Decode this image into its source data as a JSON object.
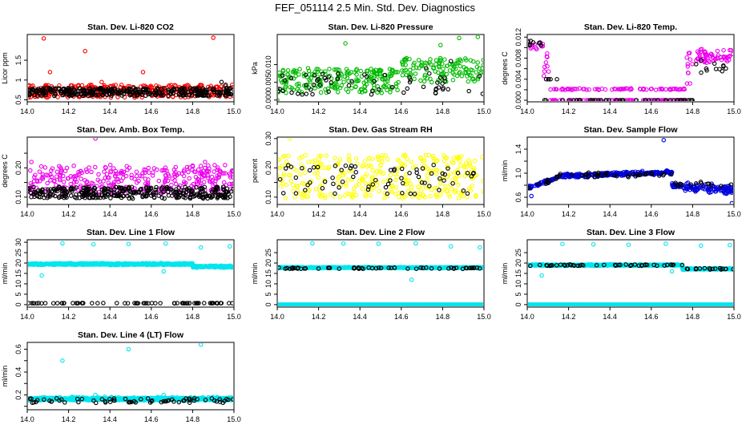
{
  "figure_title": "FEF_051114  2.5 Min. Std. Dev. Diagnostics",
  "chart_data": [
    {
      "type": "scatter",
      "title": "Stan. Dev. Li-820 CO2",
      "xlabel": "",
      "ylabel": "Licor ppm",
      "xlim": [
        14.0,
        15.0
      ],
      "ylim": [
        0.45,
        2.15
      ],
      "xticks": [
        14.0,
        14.2,
        14.4,
        14.6,
        14.8,
        15.0
      ],
      "yticks": [
        0.5,
        1.0,
        1.5
      ],
      "series": [
        {
          "name": "primary",
          "color": "#ff0000",
          "baseline": 0.72,
          "spread": 0.16,
          "seed": 11,
          "points": [
            [
              14.08,
              2.05
            ],
            [
              14.28,
              1.73
            ],
            [
              14.9,
              2.07
            ],
            [
              14.56,
              1.2
            ],
            [
              14.11,
              1.2
            ],
            [
              14.36,
              0.95
            ]
          ]
        },
        {
          "name": "secondary",
          "color": "#000000",
          "baseline": 0.7,
          "spread": 0.1,
          "seed": 12,
          "points": [
            [
              14.94,
              0.95
            ],
            [
              14.96,
              0.88
            ]
          ]
        }
      ]
    },
    {
      "type": "scatter",
      "title": "Stan. Dev. Li-820 Pressure",
      "xlabel": "",
      "ylabel": "kPa",
      "xlim": [
        14.0,
        15.0
      ],
      "ylim": [
        -0.0005,
        0.0185
      ],
      "xticks": [
        14.0,
        14.2,
        14.4,
        14.6,
        14.8,
        15.0
      ],
      "yticks": [
        0.0,
        0.005,
        0.01
      ],
      "yticklabels": [
        "0.000",
        "0.005",
        "0.010"
      ],
      "series": [
        {
          "name": "primary",
          "color": "#00bb00",
          "baseline": 0.0055,
          "spread": 0.0035,
          "seed": 21,
          "trend": [
            14.6,
            0.003
          ],
          "points": [
            [
              14.33,
              0.016
            ],
            [
              14.88,
              0.0175
            ],
            [
              14.97,
              0.0178
            ],
            [
              14.79,
              0.0155
            ],
            [
              14.0,
              0.0
            ]
          ]
        },
        {
          "name": "secondary",
          "color": "#000000",
          "baseline": 0.0045,
          "spread": 0.003,
          "seed": 22,
          "count": 60,
          "points": [
            [
              14.84,
              0.011
            ],
            [
              14.72,
              0.009
            ]
          ]
        }
      ]
    },
    {
      "type": "scatter",
      "title": "Stan. Dev. Li-820 Temp.",
      "xlabel": "",
      "ylabel": "degrees C",
      "xlim": [
        14.0,
        15.0
      ],
      "ylim": [
        -0.0003,
        0.0125
      ],
      "xticks": [
        14.0,
        14.2,
        14.4,
        14.6,
        14.8,
        15.0
      ],
      "yticks": [
        0.0,
        0.002,
        0.004,
        0.006,
        0.008,
        0.01,
        0.012
      ],
      "yticklabels": [
        "0.000",
        "",
        "0.004",
        "",
        "0.008",
        "",
        "0.012"
      ],
      "series": [
        {
          "name": "primary",
          "color": "#ee00ee",
          "mode": "temp",
          "seed": 31,
          "points": []
        },
        {
          "name": "secondary",
          "color": "#000000",
          "mode": "temp-black",
          "seed": 32,
          "points": []
        }
      ]
    },
    {
      "type": "scatter",
      "title": "Stan. Dev. Amb. Box Temp.",
      "xlabel": "",
      "ylabel": "degrees C",
      "xlim": [
        14.0,
        15.0
      ],
      "ylim": [
        0.075,
        0.305
      ],
      "xticks": [
        14.0,
        14.2,
        14.4,
        14.6,
        14.8,
        15.0
      ],
      "yticks": [
        0.1,
        0.15,
        0.2,
        0.25
      ],
      "yticklabels": [
        "0.10",
        "",
        "0.20",
        ""
      ],
      "series": [
        {
          "name": "primary",
          "color": "#ee00ee",
          "baseline": 0.16,
          "spread": 0.05,
          "seed": 41,
          "points": [
            [
              14.33,
              0.3
            ],
            [
              14.02,
              0.22
            ],
            [
              14.86,
              0.22
            ]
          ]
        },
        {
          "name": "secondary",
          "color": "#000000",
          "baseline": 0.115,
          "spread": 0.02,
          "seed": 42,
          "points": []
        }
      ]
    },
    {
      "type": "scatter",
      "title": "Stan. Dev. Gas Stream RH",
      "xlabel": "",
      "ylabel": "percent",
      "xlim": [
        14.0,
        15.0
      ],
      "ylim": [
        0.075,
        0.305
      ],
      "xticks": [
        14.0,
        14.2,
        14.4,
        14.6,
        14.8,
        15.0
      ],
      "yticks": [
        0.1,
        0.15,
        0.2,
        0.25,
        0.3
      ],
      "yticklabels": [
        "0.10",
        "",
        "0.20",
        "",
        "0.30"
      ],
      "series": [
        {
          "name": "primary",
          "color": "#ffff00",
          "baseline": 0.17,
          "spread": 0.075,
          "seed": 51,
          "points": [
            [
              14.06,
              0.3
            ]
          ]
        },
        {
          "name": "secondary",
          "color": "#000000",
          "baseline": 0.16,
          "spread": 0.05,
          "seed": 52,
          "count": 70,
          "points": []
        }
      ]
    },
    {
      "type": "scatter",
      "title": "Stan. Dev. Sample Flow",
      "xlabel": "",
      "ylabel": "ml/min",
      "xlim": [
        14.0,
        15.0
      ],
      "ylim": [
        0.48,
        1.6
      ],
      "xticks": [
        14.0,
        14.2,
        14.4,
        14.6,
        14.8,
        15.0
      ],
      "yticks": [
        0.6,
        0.8,
        1.0,
        1.2,
        1.4
      ],
      "yticklabels": [
        "0.6",
        "",
        "1.0",
        "",
        "1.4"
      ],
      "series": [
        {
          "name": "primary",
          "color": "#0000dd",
          "mode": "sampleflow",
          "seed": 61,
          "points": [
            [
              14.66,
              1.55
            ],
            [
              14.99,
              0.5
            ],
            [
              14.02,
              0.62
            ]
          ]
        },
        {
          "name": "secondary",
          "color": "#000000",
          "mode": "sampleflow-black",
          "seed": 62,
          "points": []
        }
      ]
    },
    {
      "type": "scatter",
      "title": "Stan. Dev. Line 1 Flow",
      "xlabel": "",
      "ylabel": "ml/min",
      "xlim": [
        14.0,
        15.0
      ],
      "ylim": [
        -1.2,
        31.2
      ],
      "xticks": [
        14.0,
        14.2,
        14.4,
        14.6,
        14.8,
        15.0
      ],
      "yticks": [
        0,
        5,
        10,
        15,
        20,
        25,
        30
      ],
      "series": [
        {
          "name": "primary",
          "color": "#00e5ee",
          "baseline": 19.5,
          "spread": 0.6,
          "seed": 71,
          "dense": true,
          "dip": [
            14.8,
            1.2
          ],
          "points": [
            [
              14.17,
              29.5
            ],
            [
              14.32,
              29.0
            ],
            [
              14.49,
              29.2
            ],
            [
              14.67,
              29.4
            ],
            [
              14.84,
              27.5
            ],
            [
              14.98,
              28.0
            ],
            [
              14.07,
              14.0
            ],
            [
              14.66,
              16.0
            ]
          ]
        },
        {
          "name": "secondary",
          "color": "#000000",
          "line": 0.7,
          "seed": 72,
          "count": 70,
          "points": []
        }
      ]
    },
    {
      "type": "scatter",
      "title": "Stan. Dev. Line 2 Flow",
      "xlabel": "",
      "ylabel": "ml/min",
      "xlim": [
        14.0,
        15.0
      ],
      "ylim": [
        -1.2,
        31.2
      ],
      "xticks": [
        14.0,
        14.2,
        14.4,
        14.6,
        14.8,
        15.0
      ],
      "yticks": [
        0,
        5,
        10,
        15,
        20,
        25
      ],
      "series": [
        {
          "name": "primary",
          "color": "#00e5ee",
          "baseline": 17.8,
          "spread": 0.4,
          "seed": 81,
          "dense": true,
          "zeroline": true,
          "points": [
            [
              14.17,
              29.5
            ],
            [
              14.32,
              29.4
            ],
            [
              14.49,
              29.3
            ],
            [
              14.67,
              29.5
            ],
            [
              14.84,
              28.0
            ],
            [
              14.98,
              27.5
            ],
            [
              14.65,
              12.0
            ]
          ]
        },
        {
          "name": "secondary",
          "color": "#000000",
          "baseline": 17.5,
          "spread": 0.3,
          "seed": 82,
          "count": 60,
          "points": []
        }
      ]
    },
    {
      "type": "scatter",
      "title": "Stan. Dev. Line 3 Flow",
      "xlabel": "",
      "ylabel": "ml/min",
      "xlim": [
        14.0,
        15.0
      ],
      "ylim": [
        -1.2,
        31.2
      ],
      "xticks": [
        14.0,
        14.2,
        14.4,
        14.6,
        14.8,
        15.0
      ],
      "yticks": [
        0,
        5,
        10,
        15,
        20,
        25
      ],
      "series": [
        {
          "name": "primary",
          "color": "#00e5ee",
          "baseline": 19.0,
          "spread": 0.5,
          "seed": 91,
          "dense": true,
          "zeroline": true,
          "dip": [
            14.75,
            1.8
          ],
          "points": [
            [
              14.17,
              29.2
            ],
            [
              14.32,
              29.0
            ],
            [
              14.49,
              28.8
            ],
            [
              14.67,
              29.3
            ],
            [
              14.84,
              28.4
            ],
            [
              14.98,
              28.6
            ],
            [
              14.07,
              14.0
            ],
            [
              14.7,
              16.0
            ]
          ]
        },
        {
          "name": "secondary",
          "color": "#000000",
          "baseline": 19.0,
          "spread": 0.3,
          "seed": 92,
          "count": 60,
          "dip": [
            14.75,
            1.8
          ],
          "points": []
        }
      ]
    },
    {
      "type": "scatter",
      "title": "Stan. Dev. Line 4 (LT) Flow",
      "xlabel": "",
      "ylabel": "ml/min",
      "xlim": [
        14.0,
        15.0
      ],
      "ylim": [
        0.07,
        0.66
      ],
      "xticks": [
        14.0,
        14.2,
        14.4,
        14.6,
        14.8,
        15.0
      ],
      "yticks": [
        0.1,
        0.2,
        0.3,
        0.4,
        0.5,
        0.6
      ],
      "yticklabels": [
        "",
        "0.2",
        "",
        "0.4",
        "",
        "0.6"
      ],
      "series": [
        {
          "name": "primary",
          "color": "#00e5ee",
          "baseline": 0.165,
          "spread": 0.02,
          "seed": 101,
          "dense": true,
          "points": [
            [
              14.17,
              0.5
            ],
            [
              14.49,
              0.6
            ],
            [
              14.84,
              0.64
            ],
            [
              14.33,
              0.2
            ],
            [
              14.66,
              0.2
            ]
          ]
        },
        {
          "name": "secondary",
          "color": "#000000",
          "baseline": 0.15,
          "spread": 0.02,
          "seed": 102,
          "count": 70,
          "points": []
        }
      ]
    }
  ]
}
